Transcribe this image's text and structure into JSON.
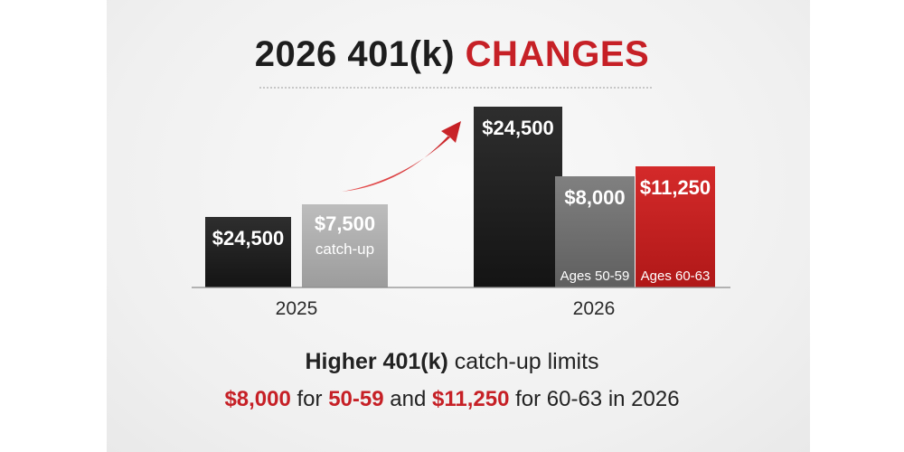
{
  "title": {
    "part1": "2026 401(k)",
    "part2": "CHANGES"
  },
  "chart_data": {
    "type": "bar",
    "groups": [
      {
        "label": "2025",
        "bars": [
          {
            "value": 24500,
            "label": "$24,500",
            "sublabel": "",
            "color": "#1e1e1e"
          },
          {
            "value": 7500,
            "label": "$7,500",
            "sublabel": "catch-up",
            "color": "#aaaaaa"
          }
        ]
      },
      {
        "label": "2026",
        "bars": [
          {
            "value": 24500,
            "label": "$24,500",
            "sublabel": "",
            "color": "#1e1e1e"
          },
          {
            "value": 8000,
            "label": "$8,000",
            "sublabel": "Ages 50-59",
            "color": "#6f6f6f"
          },
          {
            "value": 11250,
            "label": "$11,250",
            "sublabel": "Ages 60-63",
            "color": "#c4201f"
          }
        ]
      }
    ]
  },
  "footer": {
    "line1_bold": "Higher 401(k)",
    "line1_rest": "catch-up limits",
    "amount1": "$8,000",
    "text_for1": "for",
    "ages1": "50-59",
    "text_and": "and",
    "amount2": "$11,250",
    "text_tail": "for 60-63 in 2026"
  },
  "colors": {
    "accent": "#c62026",
    "dark": "#1e1e1e"
  }
}
